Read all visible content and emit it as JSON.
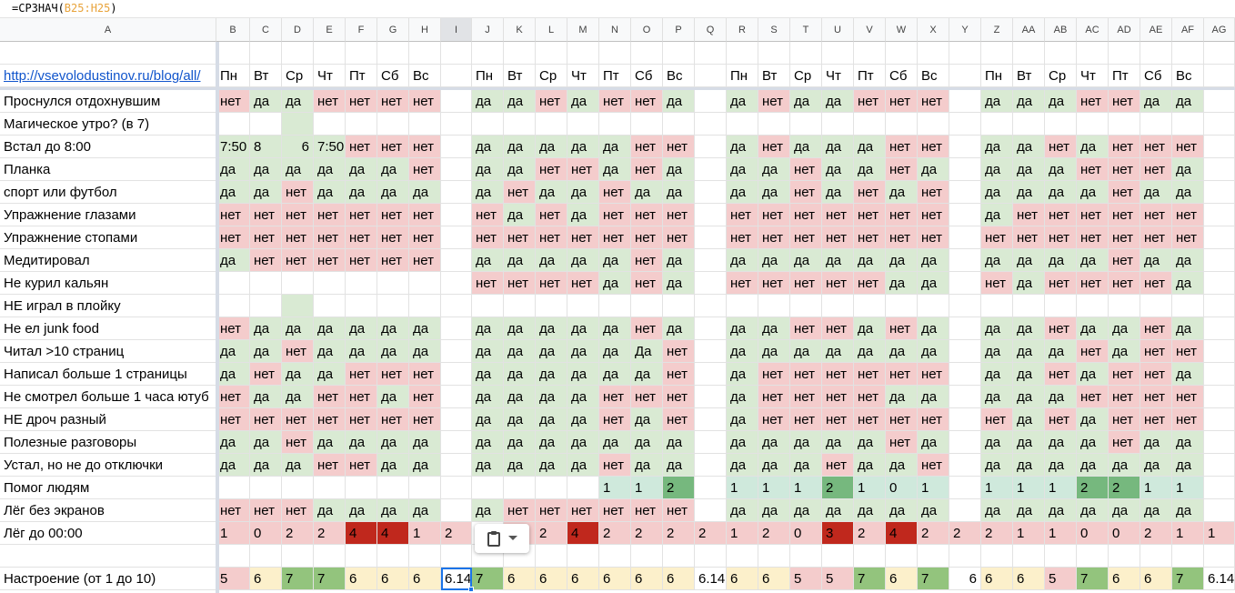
{
  "formula_bar": {
    "func": "=СРЗНАЧ(",
    "ref": "B25:H25",
    "close": ")"
  },
  "columns": [
    "A",
    "B",
    "C",
    "D",
    "E",
    "F",
    "G",
    "H",
    "I",
    "J",
    "K",
    "L",
    "M",
    "N",
    "O",
    "P",
    "Q",
    "R",
    "S",
    "T",
    "U",
    "V",
    "W",
    "X",
    "Y",
    "Z",
    "AA",
    "AB",
    "AC",
    "AD",
    "AE",
    "AF",
    "AG"
  ],
  "selected_column": "I",
  "header_row": {
    "link": "http://vsevolodustinov.ru/blog/all/",
    "weeks": [
      [
        "Пн",
        "Вт",
        "Ср",
        "Чт",
        "Пт",
        "Сб",
        "Вс"
      ],
      [
        "Пн",
        "Вт",
        "Ср",
        "Чт",
        "Пт",
        "Сб",
        "Вс"
      ],
      [
        "Пн",
        "Вт",
        "Ср",
        "Чт",
        "Пт",
        "Сб",
        "Вс"
      ],
      [
        "Пн",
        "Вт",
        "Ср",
        "Чт",
        "Пт",
        "Сб",
        "Вс"
      ]
    ]
  },
  "rows": [
    {
      "label": "Проснулся отдохнувшим",
      "weeks": [
        [
          "нет",
          "да",
          "да",
          "нет",
          "нет",
          "нет",
          "нет"
        ],
        [
          "да",
          "да",
          "нет",
          "да",
          "нет",
          "нет",
          "да"
        ],
        [
          "да",
          "нет",
          "да",
          "да",
          "нет",
          "нет",
          "нет"
        ],
        [
          "да",
          "да",
          "да",
          "нет",
          "нет",
          "да",
          "да"
        ]
      ],
      "summary": [
        "",
        "",
        "",
        ""
      ]
    },
    {
      "label": "Магическое утро? (в 7)",
      "weeks": [
        [
          "",
          "",
          "",
          "",
          "",
          "",
          ""
        ],
        [
          "",
          "",
          "",
          "",
          "",
          "",
          ""
        ],
        [
          "",
          "",
          "",
          "",
          "",
          "",
          ""
        ],
        [
          "",
          "",
          "",
          "",
          "",
          "",
          ""
        ]
      ],
      "summary": [
        "",
        "",
        "",
        ""
      ]
    },
    {
      "label": "Встал до 8:00",
      "weeks": [
        [
          "7:50",
          "8",
          "6",
          "7:50",
          "нет",
          "нет",
          "нет"
        ],
        [
          "да",
          "да",
          "да",
          "да",
          "да",
          "нет",
          "нет"
        ],
        [
          "да",
          "нет",
          "да",
          "да",
          "да",
          "нет",
          "нет"
        ],
        [
          "да",
          "да",
          "нет",
          "да",
          "нет",
          "нет",
          "нет"
        ]
      ],
      "summary": [
        "",
        "",
        "",
        ""
      ]
    },
    {
      "label": "Планка",
      "weeks": [
        [
          "да",
          "да",
          "да",
          "да",
          "да",
          "да",
          "нет"
        ],
        [
          "да",
          "да",
          "нет",
          "нет",
          "да",
          "нет",
          "да"
        ],
        [
          "да",
          "да",
          "нет",
          "да",
          "да",
          "нет",
          "да"
        ],
        [
          "да",
          "да",
          "да",
          "нет",
          "нет",
          "нет",
          "да"
        ]
      ],
      "summary": [
        "",
        "",
        "",
        ""
      ]
    },
    {
      "label": "спорт или футбол",
      "weeks": [
        [
          "да",
          "да",
          "нет",
          "да",
          "да",
          "да",
          "да"
        ],
        [
          "да",
          "нет",
          "да",
          "да",
          "нет",
          "да",
          "да"
        ],
        [
          "да",
          "да",
          "нет",
          "да",
          "нет",
          "да",
          "нет"
        ],
        [
          "да",
          "да",
          "да",
          "да",
          "нет",
          "да",
          "да"
        ]
      ],
      "summary": [
        "",
        "",
        "",
        ""
      ]
    },
    {
      "label": "Упражнение глазами",
      "weeks": [
        [
          "нет",
          "нет",
          "нет",
          "нет",
          "нет",
          "нет",
          "нет"
        ],
        [
          "нет",
          "да",
          "нет",
          "да",
          "нет",
          "нет",
          "нет"
        ],
        [
          "нет",
          "нет",
          "нет",
          "нет",
          "нет",
          "нет",
          "нет"
        ],
        [
          "да",
          "нет",
          "нет",
          "нет",
          "нет",
          "нет",
          "нет"
        ]
      ],
      "summary": [
        "",
        "",
        "",
        ""
      ]
    },
    {
      "label": "Упражнение стопами",
      "weeks": [
        [
          "нет",
          "нет",
          "нет",
          "нет",
          "нет",
          "нет",
          "нет"
        ],
        [
          "нет",
          "нет",
          "нет",
          "нет",
          "нет",
          "нет",
          "нет"
        ],
        [
          "нет",
          "нет",
          "нет",
          "нет",
          "нет",
          "нет",
          "нет"
        ],
        [
          "нет",
          "нет",
          "нет",
          "нет",
          "нет",
          "нет",
          "нет"
        ]
      ],
      "summary": [
        "",
        "",
        "",
        ""
      ]
    },
    {
      "label": "Медитировал",
      "weeks": [
        [
          "да",
          "нет",
          "нет",
          "нет",
          "нет",
          "нет",
          "нет"
        ],
        [
          "да",
          "да",
          "да",
          "да",
          "да",
          "нет",
          "да"
        ],
        [
          "да",
          "да",
          "да",
          "да",
          "да",
          "да",
          "да"
        ],
        [
          "да",
          "да",
          "да",
          "да",
          "нет",
          "да",
          "да"
        ]
      ],
      "summary": [
        "",
        "",
        "",
        ""
      ]
    },
    {
      "label": "Не курил кальян",
      "weeks": [
        [
          "",
          "",
          "",
          "",
          "",
          "",
          ""
        ],
        [
          "нет",
          "нет",
          "нет",
          "нет",
          "да",
          "нет",
          "да"
        ],
        [
          "нет",
          "нет",
          "нет",
          "нет",
          "нет",
          "да",
          "да"
        ],
        [
          "нет",
          "да",
          "нет",
          "нет",
          "нет",
          "нет",
          "да"
        ]
      ],
      "summary": [
        "",
        "",
        "",
        ""
      ]
    },
    {
      "label": "НЕ играл в плойку",
      "weeks": [
        [
          "",
          "",
          "",
          "",
          "",
          "",
          ""
        ],
        [
          "",
          "",
          "",
          "",
          "",
          "",
          ""
        ],
        [
          "",
          "",
          "",
          "",
          "",
          "",
          ""
        ],
        [
          "",
          "",
          "",
          "",
          "",
          "",
          ""
        ]
      ],
      "summary": [
        "",
        "",
        "",
        ""
      ]
    },
    {
      "label": "Не ел junk food",
      "weeks": [
        [
          "нет",
          "да",
          "да",
          "да",
          "да",
          "да",
          "да"
        ],
        [
          "да",
          "да",
          "да",
          "да",
          "да",
          "нет",
          "да"
        ],
        [
          "да",
          "да",
          "нет",
          "нет",
          "да",
          "нет",
          "да"
        ],
        [
          "да",
          "да",
          "нет",
          "да",
          "да",
          "нет",
          "да"
        ]
      ],
      "summary": [
        "",
        "",
        "",
        ""
      ]
    },
    {
      "label": "Читал >10 страниц",
      "weeks": [
        [
          "да",
          "да",
          "нет",
          "да",
          "да",
          "да",
          "да"
        ],
        [
          "да",
          "да",
          "да",
          "да",
          "да",
          "Да",
          "нет"
        ],
        [
          "да",
          "да",
          "да",
          "да",
          "да",
          "да",
          "да"
        ],
        [
          "да",
          "да",
          "да",
          "нет",
          "да",
          "нет",
          "нет"
        ]
      ],
      "summary": [
        "",
        "",
        "",
        ""
      ]
    },
    {
      "label": "Написал больше 1 страницы",
      "weeks": [
        [
          "да",
          "нет",
          "да",
          "да",
          "нет",
          "нет",
          "нет"
        ],
        [
          "да",
          "да",
          "да",
          "да",
          "да",
          "да",
          "нет"
        ],
        [
          "да",
          "нет",
          "нет",
          "нет",
          "нет",
          "нет",
          "нет"
        ],
        [
          "да",
          "да",
          "нет",
          "да",
          "нет",
          "нет",
          "да"
        ]
      ],
      "summary": [
        "",
        "",
        "",
        ""
      ]
    },
    {
      "label": "Не смотрел больше 1 часа ютуб",
      "weeks": [
        [
          "нет",
          "да",
          "да",
          "нет",
          "нет",
          "да",
          "нет"
        ],
        [
          "да",
          "да",
          "да",
          "да",
          "нет",
          "нет",
          "нет"
        ],
        [
          "да",
          "нет",
          "нет",
          "нет",
          "нет",
          "да",
          "да"
        ],
        [
          "да",
          "да",
          "да",
          "нет",
          "нет",
          "нет",
          "нет"
        ]
      ],
      "summary": [
        "",
        "",
        "",
        ""
      ]
    },
    {
      "label": "НЕ дроч разный",
      "weeks": [
        [
          "нет",
          "нет",
          "нет",
          "нет",
          "нет",
          "нет",
          "нет"
        ],
        [
          "да",
          "да",
          "да",
          "да",
          "нет",
          "да",
          "нет"
        ],
        [
          "да",
          "нет",
          "нет",
          "нет",
          "нет",
          "нет",
          "нет"
        ],
        [
          "нет",
          "да",
          "нет",
          "да",
          "нет",
          "нет",
          "нет"
        ]
      ],
      "summary": [
        "",
        "",
        "",
        ""
      ]
    },
    {
      "label": "Полезные разговоры",
      "weeks": [
        [
          "да",
          "да",
          "нет",
          "да",
          "да",
          "да",
          "да"
        ],
        [
          "да",
          "да",
          "да",
          "да",
          "да",
          "да",
          "да"
        ],
        [
          "да",
          "да",
          "да",
          "да",
          "да",
          "нет",
          "да"
        ],
        [
          "да",
          "да",
          "да",
          "да",
          "нет",
          "да",
          "да"
        ]
      ],
      "summary": [
        "",
        "",
        "",
        ""
      ]
    },
    {
      "label": "Устал, но не до отключки",
      "weeks": [
        [
          "да",
          "да",
          "да",
          "нет",
          "нет",
          "да",
          "да"
        ],
        [
          "да",
          "да",
          "да",
          "да",
          "нет",
          "да",
          "да"
        ],
        [
          "да",
          "да",
          "да",
          "нет",
          "да",
          "да",
          "нет"
        ],
        [
          "да",
          "да",
          "да",
          "да",
          "да",
          "да",
          "да"
        ]
      ],
      "summary": [
        "",
        "",
        "",
        ""
      ]
    },
    {
      "label": "Помог людям",
      "weeks": [
        [
          "",
          "",
          "",
          "",
          "",
          "",
          ""
        ],
        [
          "",
          "",
          "",
          "",
          "1",
          "1",
          "2"
        ],
        [
          "1",
          "1",
          "1",
          "2",
          "1",
          "0",
          "1"
        ],
        [
          "1",
          "1",
          "1",
          "2",
          "2",
          "1",
          "1"
        ]
      ],
      "summary": [
        "",
        "",
        "",
        ""
      ]
    },
    {
      "label": "Лёг без экранов",
      "weeks": [
        [
          "нет",
          "нет",
          "нет",
          "да",
          "да",
          "да",
          "да"
        ],
        [
          "да",
          "нет",
          "нет",
          "нет",
          "нет",
          "нет",
          "нет"
        ],
        [
          "да",
          "да",
          "да",
          "да",
          "да",
          "да",
          "да"
        ],
        [
          "да",
          "да",
          "да",
          "да",
          "да",
          "да",
          "да"
        ]
      ],
      "summary": [
        "",
        "",
        "",
        ""
      ]
    },
    {
      "label": "Лёг до 00:00",
      "weeks": [
        [
          "1",
          "0",
          "2",
          "2",
          "4",
          "4",
          "1"
        ],
        [
          "",
          "1",
          "2",
          "4",
          "2",
          "2",
          "2"
        ],
        [
          "1",
          "2",
          "0",
          "3",
          "2",
          "4",
          "2"
        ],
        [
          "2",
          "1",
          "1",
          "0",
          "0",
          "2",
          "1"
        ]
      ],
      "summary": [
        "2",
        "2",
        "2",
        "1"
      ]
    },
    {
      "label": "",
      "weeks": [
        [
          "",
          "",
          "",
          "",
          "",
          "",
          ""
        ],
        [
          "",
          "",
          "",
          "",
          "",
          "",
          ""
        ],
        [
          "",
          "",
          "",
          "",
          "",
          "",
          ""
        ],
        [
          "",
          "",
          "",
          "",
          "",
          "",
          ""
        ]
      ],
      "summary": [
        "",
        "",
        "",
        ""
      ]
    },
    {
      "label": "Настроение (от 1 до 10)",
      "weeks": [
        [
          "5",
          "6",
          "7",
          "7",
          "6",
          "6",
          "6"
        ],
        [
          "7",
          "6",
          "6",
          "6",
          "6",
          "6",
          "6"
        ],
        [
          "6",
          "6",
          "5",
          "5",
          "7",
          "6",
          "7"
        ],
        [
          "6",
          "6",
          "5",
          "7",
          "6",
          "6",
          "7"
        ]
      ],
      "summary": [
        "6.14",
        "6.14",
        "6",
        "6.14"
      ]
    }
  ],
  "colors": {
    "red": "#f4cccc",
    "green": "#d9ead3",
    "dark_red": "#c0281d",
    "teal": "#cfe9dc",
    "dark_green": "#76b87e",
    "yellow": "#fcf0cb",
    "mid_green": "#93c47d",
    "selection": "#1a73e8"
  },
  "paste_popup": {
    "icon": "clipboard-icon",
    "dropdown": "chevron-down-icon"
  }
}
